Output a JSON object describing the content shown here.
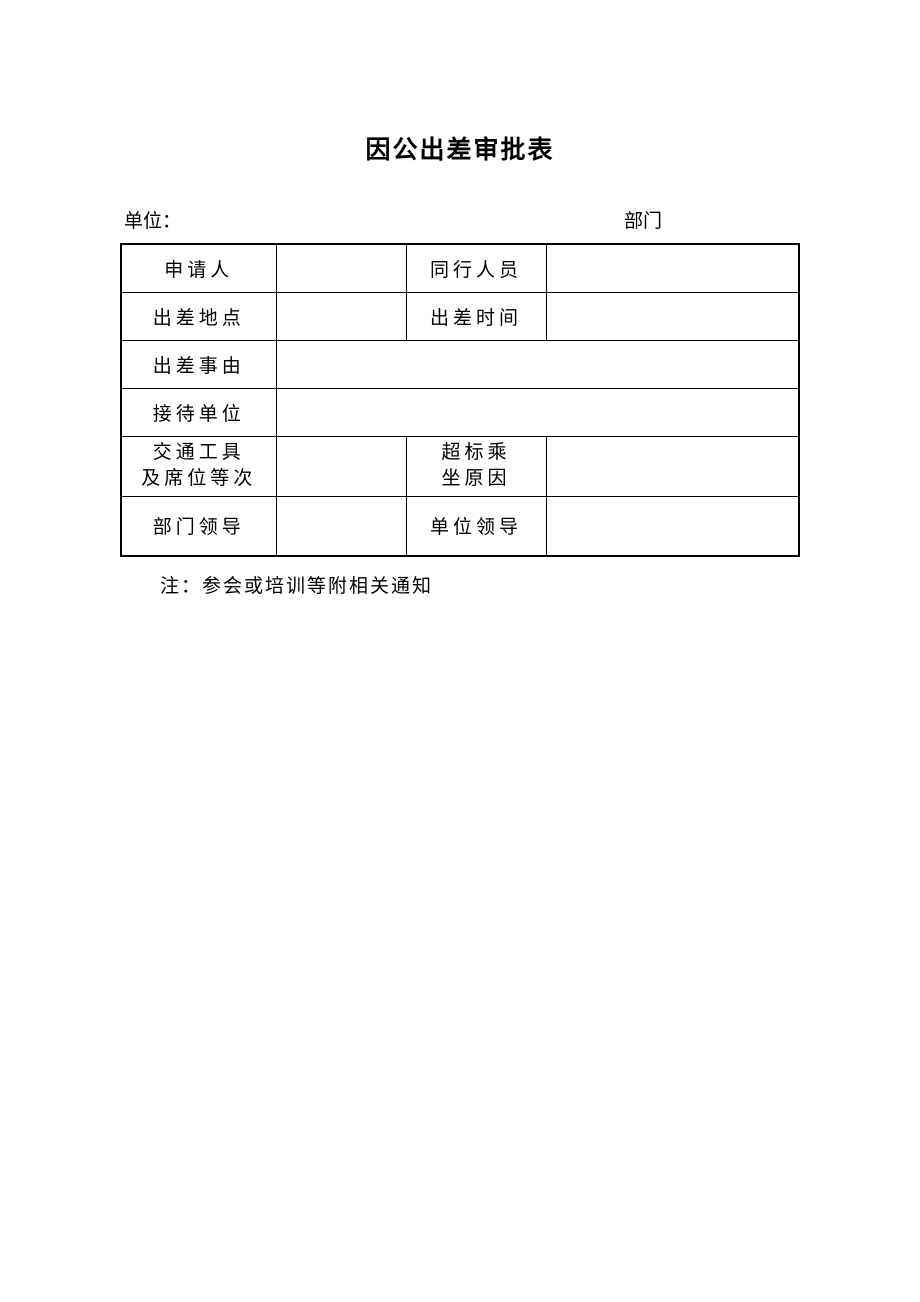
{
  "title": "因公出差审批表",
  "header": {
    "unit_label": "单位：",
    "dept_label": "部门"
  },
  "table": {
    "rows": [
      {
        "label1": "申请人",
        "value1": "",
        "label2": "同行人员",
        "value2": ""
      },
      {
        "label1": "出差地点",
        "value1": "",
        "label2": "出差时间",
        "value2": ""
      },
      {
        "label1": "出差事由",
        "value_merged": ""
      },
      {
        "label1": "接待单位",
        "value_merged": ""
      },
      {
        "label1_line1": "交通工具",
        "label1_line2": "及席位等次",
        "value1": "",
        "label2_line1": "超标乘",
        "label2_line2": "坐原因",
        "value2": ""
      },
      {
        "label1": "部门领导",
        "value1": "",
        "label2": "单位领导",
        "value2": ""
      }
    ],
    "column_widths": {
      "label_col": 155,
      "value_col_narrow": 130,
      "label_col_2": 140
    },
    "colors": {
      "border": "#000000",
      "background": "#ffffff",
      "text": "#000000"
    },
    "font_size": 19,
    "outer_border_width": 2.5,
    "inner_border_width": 1
  },
  "footnote": "注：参会或培训等附相关通知"
}
